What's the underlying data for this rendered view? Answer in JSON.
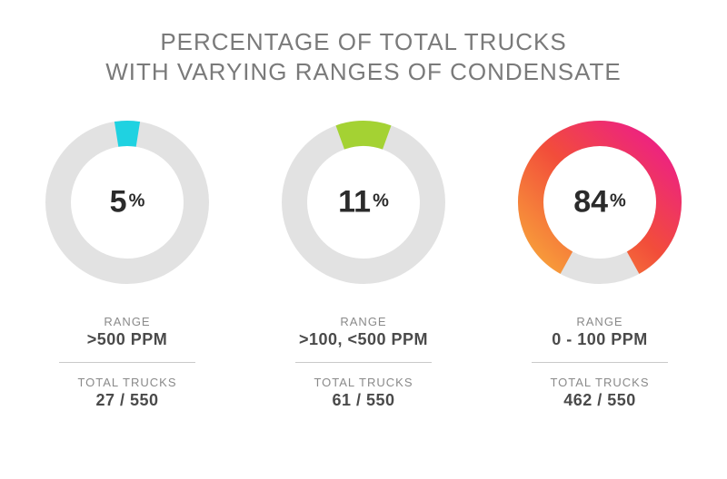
{
  "title_line1": "PERCENTAGE OF TOTAL TRUCKS",
  "title_line2": "WITH VARYING RANGES OF CONDENSATE",
  "chart": {
    "type": "donut",
    "track_color": "#e2e2e2",
    "background_color": "#ffffff",
    "stroke_width": 28,
    "outer_radius": 90,
    "start_angle_deg": 0,
    "value_font_color": "#2b2b2b",
    "value_fontsize_num": 34,
    "value_fontsize_sign": 20,
    "meta_label_color": "#8a8a8a",
    "meta_value_color": "#4a4a4a",
    "divider_color": "#c9c9c9",
    "title_color": "#7a7a7a",
    "title_fontsize": 26
  },
  "items": [
    {
      "percent": 5,
      "arc_color": "#1fd2e1",
      "gradient": null,
      "range_label": "RANGE",
      "range_value": ">500 PPM",
      "trucks_label": "TOTAL TRUCKS",
      "trucks_value": "27 / 550"
    },
    {
      "percent": 11,
      "arc_color": "#a4d233",
      "gradient": null,
      "range_label": "RANGE",
      "range_value": ">100, <500 PPM",
      "trucks_label": "TOTAL TRUCKS",
      "trucks_value": "61 / 550"
    },
    {
      "percent": 84,
      "arc_color": "#ec1b8d",
      "gradient": {
        "from": "#f8a23a",
        "mid": "#f24d3a",
        "to": "#ec1b8d"
      },
      "range_label": "RANGE",
      "range_value": "0 - 100 PPM",
      "trucks_label": "TOTAL TRUCKS",
      "trucks_value": "462 / 550"
    }
  ]
}
